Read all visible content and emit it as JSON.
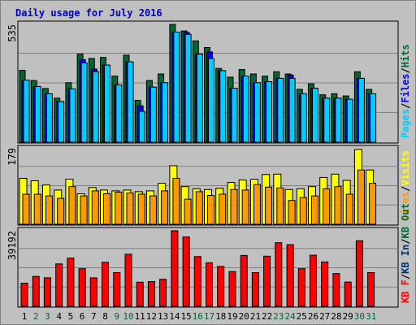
{
  "title": "Daily usage for July 2016",
  "colors": {
    "background": "#c0c0c0",
    "border": "#808080",
    "grid": "#808080",
    "title": "#0000cc",
    "hits": "#006633",
    "files": "#0000ff",
    "pages": "#00ccff",
    "visits": "#ffff00",
    "sites": "#ff9900",
    "kb_in": "#003366",
    "kb_out": "#006633",
    "kb_f": "#ff0000",
    "weekend": "#006633",
    "weekday": "#000000"
  },
  "chart_data": [
    {
      "type": "bar",
      "panel": "top",
      "max_label": "535",
      "ylim": [
        0,
        535
      ],
      "legend_parts": [
        "Pages",
        "Files",
        "Hits"
      ],
      "legend_seps": [
        "/",
        "/"
      ],
      "categories": [
        "1",
        "2",
        "3",
        "4",
        "5",
        "6",
        "7",
        "8",
        "9",
        "10",
        "11",
        "12",
        "13",
        "14",
        "15",
        "16",
        "17",
        "18",
        "19",
        "20",
        "21",
        "22",
        "23",
        "24",
        "25",
        "26",
        "27",
        "28",
        "29",
        "30",
        "31"
      ],
      "weekend": [
        false,
        true,
        true,
        false,
        false,
        false,
        false,
        false,
        true,
        true,
        false,
        false,
        false,
        false,
        false,
        true,
        true,
        false,
        false,
        false,
        false,
        false,
        true,
        true,
        false,
        false,
        false,
        false,
        false,
        true,
        true
      ],
      "series": [
        {
          "name": "Hits",
          "values": [
            326,
            280,
            244,
            200,
            270,
            400,
            380,
            385,
            300,
            395,
            190,
            280,
            310,
            535,
            505,
            460,
            430,
            335,
            295,
            330,
            310,
            300,
            320,
            310,
            240,
            265,
            215,
            220,
            210,
            320,
            240
          ]
        },
        {
          "name": "Files",
          "values": [
            282,
            253,
            220,
            185,
            242,
            375,
            332,
            350,
            260,
            365,
            165,
            250,
            270,
            500,
            498,
            400,
            410,
            325,
            245,
            300,
            270,
            275,
            290,
            305,
            220,
            245,
            200,
            200,
            195,
            290,
            220
          ]
        },
        {
          "name": "Pages",
          "values": [
            282,
            253,
            220,
            185,
            242,
            360,
            320,
            350,
            260,
            365,
            140,
            250,
            270,
            500,
            490,
            400,
            380,
            325,
            245,
            300,
            270,
            275,
            290,
            290,
            220,
            245,
            200,
            200,
            195,
            290,
            220
          ]
        }
      ]
    },
    {
      "type": "bar",
      "panel": "middle",
      "max_label": "179",
      "ylim": [
        0,
        179
      ],
      "legend_parts": [
        "Visits",
        "Sites"
      ],
      "legend_seps": [
        "/"
      ],
      "categories": [
        "1",
        "2",
        "3",
        "4",
        "5",
        "6",
        "7",
        "8",
        "9",
        "10",
        "11",
        "12",
        "13",
        "14",
        "15",
        "16",
        "17",
        "18",
        "19",
        "20",
        "21",
        "22",
        "23",
        "24",
        "25",
        "26",
        "27",
        "28",
        "29",
        "30",
        "31"
      ],
      "series": [
        {
          "name": "Visits",
          "values": [
            110,
            104,
            94,
            82,
            108,
            73,
            88,
            82,
            80,
            82,
            78,
            80,
            98,
            140,
            90,
            85,
            83,
            86,
            100,
            106,
            108,
            119,
            120,
            83,
            85,
            90,
            112,
            120,
            105,
            179,
            130
          ]
        },
        {
          "name": "Sites",
          "values": [
            72,
            72,
            68,
            62,
            90,
            68,
            80,
            73,
            77,
            75,
            72,
            68,
            80,
            110,
            60,
            78,
            69,
            72,
            83,
            82,
            95,
            89,
            87,
            57,
            64,
            68,
            85,
            90,
            72,
            130,
            98
          ]
        }
      ]
    },
    {
      "type": "bar",
      "panel": "bottom",
      "max_label": "39192",
      "ylim": [
        0,
        39192
      ],
      "legend_parts": [
        "KB F",
        "KB In",
        "KB Out"
      ],
      "legend_seps": [
        "/",
        "/"
      ],
      "categories": [
        "1",
        "2",
        "3",
        "4",
        "5",
        "6",
        "7",
        "8",
        "9",
        "10",
        "11",
        "12",
        "13",
        "14",
        "15",
        "16",
        "17",
        "18",
        "19",
        "20",
        "21",
        "22",
        "23",
        "24",
        "25",
        "26",
        "27",
        "28",
        "29",
        "30",
        "31"
      ],
      "series": [
        {
          "name": "KB F",
          "values": [
            12000,
            15500,
            14800,
            22000,
            25000,
            19500,
            14800,
            22800,
            17500,
            27000,
            12500,
            12800,
            14000,
            39192,
            36000,
            25800,
            22600,
            20700,
            18000,
            26400,
            17500,
            26000,
            33000,
            32000,
            19500,
            26500,
            23000,
            17000,
            12600,
            34000,
            17500
          ]
        }
      ]
    }
  ]
}
